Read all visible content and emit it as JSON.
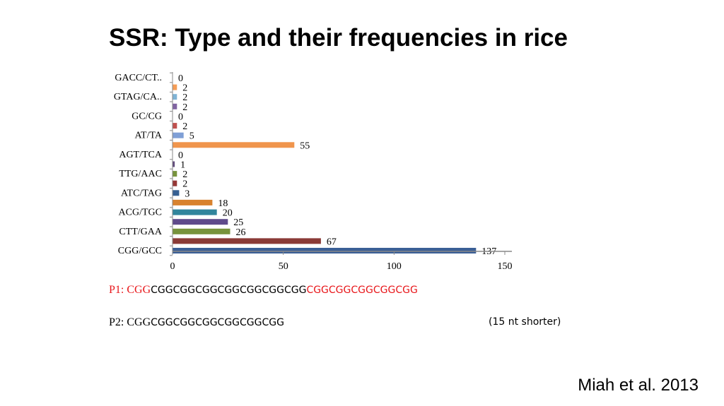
{
  "slide": {
    "title": "SSR: Type and their frequencies in rice",
    "citation": "Miah et al. 2013"
  },
  "sequences": {
    "p1": {
      "label": "P1: ",
      "seg1": "CGG",
      "seg2": "CGGCGGCGGCGGCGGCGGCGG",
      "seg3": "CGGCGGCGGCGGCGG"
    },
    "p2": {
      "label": "P2: ",
      "seg1": "CGG",
      "seg2": "CGGCGGCGGCGGCGGCGG"
    },
    "note": "(15 nt shorter)"
  },
  "chart_data": {
    "type": "bar",
    "orientation": "horizontal",
    "category_labels": [
      "GACC/CT..",
      "GTAG/CA..",
      "GC/CG",
      "AT/TA",
      "AGT/TCA",
      "TTG/AAC",
      "ATC/TAG",
      "ACG/TGC",
      "CTT/GAA",
      "CGG/GCC"
    ],
    "bars": [
      {
        "value": 0,
        "color": "#4a7ebb"
      },
      {
        "value": 2,
        "color": "#f59d56"
      },
      {
        "value": 2,
        "color": "#7fb3d5"
      },
      {
        "value": 2,
        "color": "#8064a2"
      },
      {
        "value": 0,
        "color": "#9bbb59"
      },
      {
        "value": 2,
        "color": "#c0504d"
      },
      {
        "value": 5,
        "color": "#7f9fd6"
      },
      {
        "value": 55,
        "color": "#f0954c"
      },
      {
        "value": 0,
        "color": "#4bacc6"
      },
      {
        "value": 1,
        "color": "#604a7b"
      },
      {
        "value": 2,
        "color": "#77933c"
      },
      {
        "value": 2,
        "color": "#953735"
      },
      {
        "value": 3,
        "color": "#376092"
      },
      {
        "value": 18,
        "color": "#d8822f"
      },
      {
        "value": 20,
        "color": "#31859c"
      },
      {
        "value": 25,
        "color": "#5f4a8b"
      },
      {
        "value": 26,
        "color": "#77933c"
      },
      {
        "value": 67,
        "color": "#8a3a36"
      },
      {
        "value": 137,
        "color": "#3a5f96"
      }
    ],
    "xticks": [
      0,
      50,
      100,
      150
    ],
    "xlim": [
      0,
      150
    ],
    "grid": false,
    "legend": "none"
  }
}
